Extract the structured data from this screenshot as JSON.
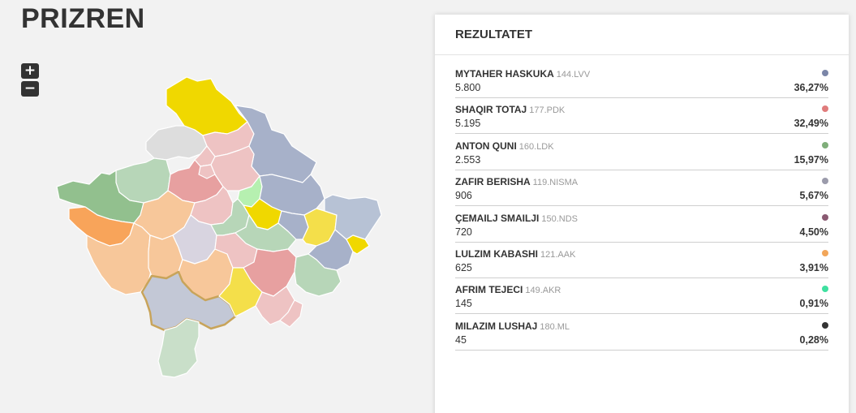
{
  "page": {
    "title": "PRIZREN"
  },
  "zoom": {
    "in_label": "+",
    "out_label": "−"
  },
  "panel": {
    "title": "REZULTATET"
  },
  "candidates": [
    {
      "name": "MYTAHER HASKUKA",
      "code": "144.LVV",
      "votes": "5.800",
      "percent": "36,27%",
      "color": "#7b86a8"
    },
    {
      "name": "SHAQIR TOTAJ",
      "code": "177.PDK",
      "votes": "5.195",
      "percent": "32,49%",
      "color": "#e07c7c"
    },
    {
      "name": "ANTON QUNI",
      "code": "160.LDK",
      "votes": "2.553",
      "percent": "15,97%",
      "color": "#7fae7a"
    },
    {
      "name": "ZAFIR BERISHA",
      "code": "119.NISMA",
      "votes": "906",
      "percent": "5,67%",
      "color": "#9b9bab"
    },
    {
      "name": "ÇEMAILJ SMAILJI",
      "code": "150.NDS",
      "votes": "720",
      "percent": "4,50%",
      "color": "#8a5a72"
    },
    {
      "name": "LULZIM KABASHI",
      "code": "121.AAK",
      "votes": "625",
      "percent": "3,91%",
      "color": "#f2a65a"
    },
    {
      "name": "AFRIM TEJECI",
      "code": "149.AKR",
      "votes": "145",
      "percent": "0,91%",
      "color": "#3fe0a0"
    },
    {
      "name": "MILAZIM LUSHAJ",
      "code": "180.ML",
      "votes": "45",
      "percent": "0,28%",
      "color": "#333333"
    }
  ],
  "map": {
    "regions": [
      {
        "name": "leposavic",
        "fill": "#f0d800"
      },
      {
        "name": "zubin-potok",
        "fill": "#dddddd"
      },
      {
        "name": "zvecan",
        "fill": "#eec3c3"
      },
      {
        "name": "mitrovica-north",
        "fill": "#eec3c3"
      },
      {
        "name": "podujeva",
        "fill": "#a7b1c9"
      },
      {
        "name": "istog",
        "fill": "#b7d6b8"
      },
      {
        "name": "skenderaj",
        "fill": "#e7a0a0"
      },
      {
        "name": "vushtrri",
        "fill": "#eec3c3"
      },
      {
        "name": "mitrovica-south",
        "fill": "#eec3c3"
      },
      {
        "name": "peja",
        "fill": "#92c08e"
      },
      {
        "name": "kline",
        "fill": "#f7c79a"
      },
      {
        "name": "drenas",
        "fill": "#eec3c3"
      },
      {
        "name": "obiliq",
        "fill": "#b6f0b0"
      },
      {
        "name": "prishtina",
        "fill": "#a7b1c9"
      },
      {
        "name": "deçan",
        "fill": "#f8a45a"
      },
      {
        "name": "gjakova",
        "fill": "#f7c79a"
      },
      {
        "name": "rahovec",
        "fill": "#f7c79a"
      },
      {
        "name": "malisheva",
        "fill": "#d8d4e0"
      },
      {
        "name": "gllogoc-south",
        "fill": "#b7d6b8"
      },
      {
        "name": "fushe-kosove",
        "fill": "#f0d800"
      },
      {
        "name": "lipjan",
        "fill": "#b7d6b8"
      },
      {
        "name": "gracanica",
        "fill": "#a7b1c9"
      },
      {
        "name": "novoberde",
        "fill": "#f4df4a"
      },
      {
        "name": "gjilan",
        "fill": "#a7b1c9"
      },
      {
        "name": "kamenica",
        "fill": "#b7c2d5"
      },
      {
        "name": "suhareka",
        "fill": "#f7c79a"
      },
      {
        "name": "shtime",
        "fill": "#eec3c3"
      },
      {
        "name": "ferizaj",
        "fill": "#e7a0a0"
      },
      {
        "name": "viti",
        "fill": "#b7d6b8"
      },
      {
        "name": "ranillug",
        "fill": "#f0d800"
      },
      {
        "name": "prizren",
        "fill": "#c3c8d6"
      },
      {
        "name": "shterpce",
        "fill": "#f4df4a"
      },
      {
        "name": "kacanik",
        "fill": "#eec3c3"
      },
      {
        "name": "dragash",
        "fill": "#c9dfc9"
      },
      {
        "name": "hani-i-elezit",
        "fill": "#eec3c3"
      }
    ]
  }
}
